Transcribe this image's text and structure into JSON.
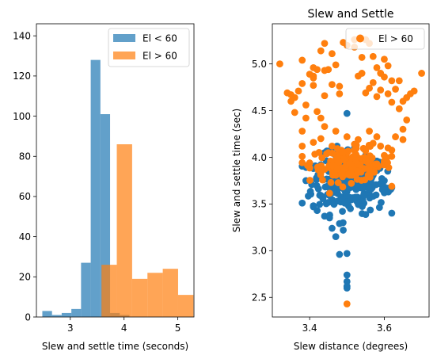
{
  "chart_data": [
    {
      "type": "bar",
      "subtype": "histogram",
      "title": "",
      "xlabel": "Slew and settle time (seconds)",
      "ylabel": "",
      "xlim": [
        2.37,
        5.3
      ],
      "ylim": [
        0,
        146
      ],
      "xticks": [
        3,
        4,
        5
      ],
      "yticks": [
        0,
        20,
        40,
        60,
        80,
        100,
        120,
        140
      ],
      "legend_position": "top-right",
      "series": [
        {
          "name": "El < 60",
          "color": "#1f77b4",
          "alpha": 0.7,
          "bins": [
            2.48,
            2.66,
            2.84,
            3.02,
            3.2,
            3.38,
            3.56,
            3.74,
            3.92,
            4.1,
            4.28
          ],
          "counts": [
            3,
            1,
            2,
            4,
            27,
            128,
            101,
            2,
            1,
            0
          ]
        },
        {
          "name": "El > 60",
          "color": "#ff7f0e",
          "alpha": 0.7,
          "bins": [
            2.44,
            2.725,
            3.01,
            3.295,
            3.58,
            3.865,
            4.15,
            4.435,
            4.72,
            5.005,
            5.29
          ],
          "counts": [
            0,
            0,
            0,
            0,
            26,
            86,
            19,
            22,
            24,
            11
          ]
        }
      ]
    },
    {
      "type": "scatter",
      "title": "Slew and Settle",
      "xlabel": "Slew distance (degrees)",
      "ylabel": "Slew and settle time (sec)",
      "xlim": [
        3.3,
        3.72
      ],
      "ylim": [
        2.29,
        5.43
      ],
      "xticks": [
        3.4,
        3.6
      ],
      "yticks": [
        2.5,
        3.0,
        3.5,
        4.0,
        4.5,
        5.0
      ],
      "legend_position": "top-right",
      "series": [
        {
          "name": "",
          "color": "#1f77b4",
          "points": [
            [
              3.5,
              4.47
            ],
            [
              3.38,
              3.51
            ],
            [
              3.39,
              3.75
            ],
            [
              3.39,
              3.91
            ],
            [
              3.41,
              3.88
            ],
            [
              3.41,
              3.47
            ],
            [
              3.42,
              3.43
            ],
            [
              3.44,
              3.37
            ],
            [
              3.46,
              3.24
            ],
            [
              3.47,
              3.15
            ],
            [
              3.48,
              3.29
            ],
            [
              3.49,
              3.22
            ],
            [
              3.48,
              2.96
            ],
            [
              3.5,
              2.97
            ],
            [
              3.5,
              2.74
            ],
            [
              3.5,
              2.67
            ],
            [
              3.5,
              2.62
            ],
            [
              3.5,
              2.6
            ],
            [
              3.59,
              3.72
            ],
            [
              3.6,
              3.75
            ],
            [
              3.61,
              3.67
            ],
            [
              3.6,
              3.62
            ],
            [
              3.58,
              3.86
            ],
            [
              3.43,
              3.92
            ],
            [
              3.44,
              4.05
            ],
            [
              3.46,
              4.1
            ],
            [
              3.55,
              4.02
            ],
            [
              3.52,
              4.1
            ]
          ],
          "cloud": {
            "center": [
              3.505,
              3.72
            ],
            "spread": [
              0.05,
              0.16
            ],
            "count": 230
          }
        },
        {
          "name": "El > 60",
          "color": "#ff7f0e",
          "points": [
            [
              3.32,
              5.0
            ],
            [
              3.34,
              4.69
            ],
            [
              3.35,
              4.6
            ],
            [
              3.35,
              4.67
            ],
            [
              3.36,
              4.64
            ],
            [
              3.36,
              4.48
            ],
            [
              3.37,
              4.71
            ],
            [
              3.38,
              4.79
            ],
            [
              3.38,
              5.04
            ],
            [
              3.39,
              4.56
            ],
            [
              3.4,
              4.89
            ],
            [
              3.41,
              4.87
            ],
            [
              3.41,
              4.77
            ],
            [
              3.41,
              4.96
            ],
            [
              3.41,
              4.85
            ],
            [
              3.42,
              4.94
            ],
            [
              3.43,
              5.14
            ],
            [
              3.44,
              5.22
            ],
            [
              3.44,
              4.93
            ],
            [
              3.45,
              4.94
            ],
            [
              3.46,
              5.11
            ],
            [
              3.47,
              4.99
            ],
            [
              3.48,
              4.76
            ],
            [
              3.49,
              5.23
            ],
            [
              3.5,
              5.2
            ],
            [
              3.52,
              5.26
            ],
            [
              3.52,
              5.18
            ],
            [
              3.54,
              5.07
            ],
            [
              3.55,
              5.26
            ],
            [
              3.56,
              5.22
            ],
            [
              3.57,
              5.08
            ],
            [
              3.58,
              4.96
            ],
            [
              3.59,
              4.9
            ],
            [
              3.6,
              5.05
            ],
            [
              3.6,
              4.86
            ],
            [
              3.61,
              4.98
            ],
            [
              3.62,
              4.82
            ],
            [
              3.63,
              4.73
            ],
            [
              3.64,
              4.82
            ],
            [
              3.65,
              4.6
            ],
            [
              3.66,
              4.64
            ],
            [
              3.67,
              4.68
            ],
            [
              3.68,
              4.71
            ],
            [
              3.7,
              4.9
            ],
            [
              3.53,
              4.87
            ],
            [
              3.54,
              4.9
            ],
            [
              3.55,
              4.69
            ],
            [
              3.56,
              4.74
            ],
            [
              3.57,
              4.8
            ],
            [
              3.58,
              4.65
            ],
            [
              3.59,
              4.72
            ],
            [
              3.62,
              4.59
            ],
            [
              3.64,
              4.52
            ],
            [
              3.65,
              4.3
            ],
            [
              3.66,
              4.4
            ],
            [
              3.61,
              4.68
            ],
            [
              3.44,
              4.66
            ],
            [
              3.46,
              4.78
            ],
            [
              3.48,
              4.68
            ],
            [
              3.39,
              4.42
            ],
            [
              3.38,
              4.28
            ],
            [
              3.42,
              4.49
            ],
            [
              3.43,
              4.42
            ],
            [
              3.44,
              4.33
            ],
            [
              3.47,
              4.28
            ],
            [
              3.5,
              4.22
            ],
            [
              3.53,
              4.19
            ],
            [
              3.56,
              4.28
            ],
            [
              3.58,
              4.22
            ],
            [
              3.59,
              4.12
            ],
            [
              3.61,
              4.1
            ],
            [
              3.63,
              4.22
            ],
            [
              3.65,
              4.19
            ],
            [
              3.41,
              4.16
            ],
            [
              3.38,
              4.12
            ],
            [
              3.38,
              4.01
            ],
            [
              3.4,
              3.94
            ],
            [
              3.5,
              2.43
            ],
            [
              3.43,
              4.2
            ],
            [
              3.46,
              4.12
            ],
            [
              3.52,
              4.14
            ],
            [
              3.55,
              4.07
            ],
            [
              3.57,
              4.15
            ],
            [
              3.6,
              4.02
            ],
            [
              3.62,
              4.01
            ],
            [
              3.6,
              3.96
            ],
            [
              3.58,
              3.93
            ],
            [
              3.45,
              4.05
            ],
            [
              3.48,
              4.07
            ]
          ],
          "cloud": {
            "center": [
              3.51,
              3.92
            ],
            "spread": [
              0.055,
              0.09
            ],
            "count": 130
          }
        }
      ]
    }
  ]
}
